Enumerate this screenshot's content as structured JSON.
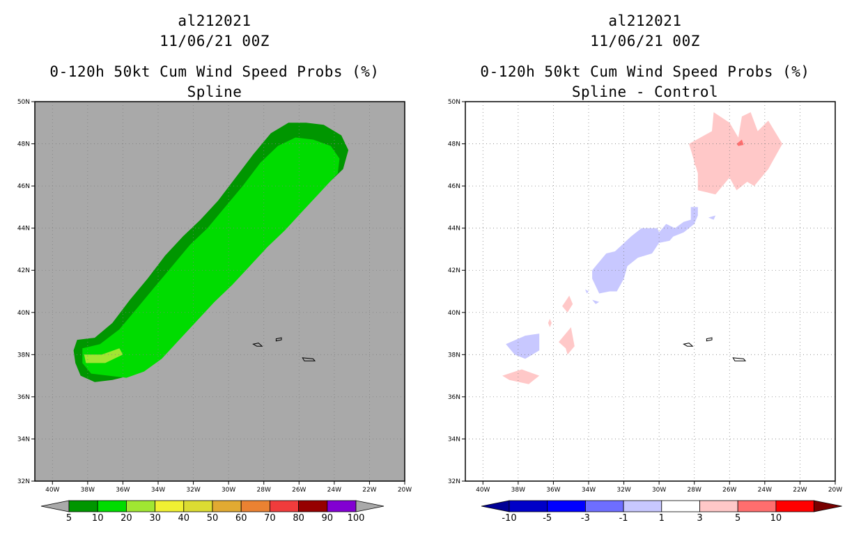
{
  "left_panel": {
    "storm_id": "al212021",
    "datetime": "11/06/21 00Z",
    "product": "0-120h 50kt Cum Wind Speed Probs (%)",
    "subtitle": "Spline",
    "background_color": "#a9a9a9",
    "colorbar": {
      "labels": [
        "5",
        "10",
        "20",
        "30",
        "40",
        "50",
        "60",
        "70",
        "80",
        "90",
        "100"
      ],
      "colors": [
        "#009600",
        "#00dc00",
        "#a0e632",
        "#f0f032",
        "#dcdc32",
        "#e1aa32",
        "#eb8232",
        "#f03c3c",
        "#960000",
        "#8200d2"
      ],
      "extend_color": "#a9a9a9"
    }
  },
  "right_panel": {
    "storm_id": "al212021",
    "datetime": "11/06/21 00Z",
    "product": "0-120h 50kt Cum Wind Speed Probs (%)",
    "subtitle": "Spline - Control",
    "background_color": "#ffffff",
    "colorbar": {
      "labels": [
        "-10",
        "-5",
        "-3",
        "-1",
        "1",
        "3",
        "5",
        "10"
      ],
      "colors": [
        "#0000c8",
        "#0000ff",
        "#6e6eff",
        "#c8c8ff",
        "#ffffff",
        "#ffc8c8",
        "#ff6e6e",
        "#ff0000"
      ],
      "low_extend_color": "#000096",
      "high_extend_color": "#780000"
    }
  },
  "axes": {
    "lat_labels": [
      "32N",
      "34N",
      "36N",
      "38N",
      "40N",
      "42N",
      "44N",
      "46N",
      "48N",
      "50N"
    ],
    "lon_labels": [
      "40W",
      "38W",
      "36W",
      "34W",
      "32W",
      "30W",
      "28W",
      "26W",
      "24W",
      "22W",
      "20W"
    ]
  },
  "chart_data": {
    "type": "map",
    "lat_range": [
      32,
      50
    ],
    "lon_range": [
      -41,
      -20
    ],
    "outer_band_5pct": [
      [
        -38.6,
        38.7
      ],
      [
        -37.6,
        38.8
      ],
      [
        -36.6,
        39.5
      ],
      [
        -35.6,
        40.6
      ],
      [
        -34.6,
        41.6
      ],
      [
        -33.6,
        42.7
      ],
      [
        -32.6,
        43.6
      ],
      [
        -31.6,
        44.4
      ],
      [
        -30.6,
        45.3
      ],
      [
        -29.6,
        46.4
      ],
      [
        -28.6,
        47.5
      ],
      [
        -27.6,
        48.5
      ],
      [
        -26.6,
        49.0
      ],
      [
        -25.6,
        49.0
      ],
      [
        -24.6,
        48.9
      ],
      [
        -23.6,
        48.4
      ],
      [
        -23.2,
        47.7
      ],
      [
        -23.5,
        46.8
      ],
      [
        -24.5,
        46.0
      ],
      [
        -25.6,
        45.1
      ],
      [
        -26.6,
        44.2
      ],
      [
        -27.6,
        43.4
      ],
      [
        -28.6,
        42.5
      ],
      [
        -29.6,
        41.7
      ],
      [
        -30.6,
        40.9
      ],
      [
        -31.6,
        40.0
      ],
      [
        -32.6,
        39.1
      ],
      [
        -33.6,
        38.2
      ],
      [
        -34.6,
        37.4
      ],
      [
        -35.6,
        37.0
      ],
      [
        -36.6,
        36.8
      ],
      [
        -37.6,
        36.7
      ],
      [
        -38.4,
        37.0
      ],
      [
        -38.7,
        37.6
      ],
      [
        -38.8,
        38.2
      ]
    ],
    "inner_band_10pct": [
      [
        -38.3,
        38.3
      ],
      [
        -37.3,
        38.5
      ],
      [
        -36.2,
        39.2
      ],
      [
        -35.2,
        40.2
      ],
      [
        -34.2,
        41.2
      ],
      [
        -33.2,
        42.2
      ],
      [
        -32.2,
        43.2
      ],
      [
        -31.2,
        44.0
      ],
      [
        -30.2,
        45.0
      ],
      [
        -29.2,
        46.0
      ],
      [
        -28.2,
        47.1
      ],
      [
        -27.2,
        47.9
      ],
      [
        -26.2,
        48.3
      ],
      [
        -25.2,
        48.2
      ],
      [
        -24.2,
        47.9
      ],
      [
        -23.7,
        47.3
      ],
      [
        -23.8,
        46.6
      ],
      [
        -24.8,
        45.7
      ],
      [
        -25.8,
        44.8
      ],
      [
        -26.8,
        43.9
      ],
      [
        -27.8,
        43.1
      ],
      [
        -28.8,
        42.2
      ],
      [
        -29.8,
        41.3
      ],
      [
        -30.8,
        40.5
      ],
      [
        -31.8,
        39.6
      ],
      [
        -32.8,
        38.7
      ],
      [
        -33.8,
        37.8
      ],
      [
        -34.8,
        37.2
      ],
      [
        -35.8,
        36.9
      ],
      [
        -36.8,
        37.0
      ],
      [
        -37.8,
        37.1
      ],
      [
        -38.3,
        37.6
      ]
    ],
    "core_20pct": [
      [
        -38.2,
        38.0
      ],
      [
        -37.2,
        38.0
      ],
      [
        -36.2,
        38.3
      ],
      [
        -36.0,
        38.0
      ],
      [
        -37.0,
        37.6
      ],
      [
        -38.1,
        37.6
      ]
    ],
    "islands": [
      [
        [
          -28.6,
          38.5
        ],
        [
          -28.3,
          38.55
        ],
        [
          -28.1,
          38.4
        ],
        [
          -28.4,
          38.4
        ]
      ],
      [
        [
          -27.3,
          38.75
        ],
        [
          -27.0,
          38.8
        ],
        [
          -27.0,
          38.7
        ],
        [
          -27.3,
          38.65
        ]
      ],
      [
        [
          -25.8,
          37.85
        ],
        [
          -25.2,
          37.8
        ],
        [
          -25.1,
          37.7
        ],
        [
          -25.7,
          37.7
        ]
      ]
    ],
    "diff_positive": [
      [
        [
          -28.3,
          48.0
        ],
        [
          -27.0,
          48.6
        ],
        [
          -26.9,
          49.5
        ],
        [
          -26.0,
          49.0
        ],
        [
          -25.5,
          48.3
        ],
        [
          -25.3,
          49.3
        ],
        [
          -24.8,
          49.5
        ],
        [
          -24.4,
          48.6
        ],
        [
          -23.8,
          49.1
        ],
        [
          -23.0,
          48.0
        ],
        [
          -23.8,
          46.8
        ],
        [
          -24.6,
          46.0
        ],
        [
          -25.0,
          46.2
        ],
        [
          -25.6,
          45.8
        ],
        [
          -26.0,
          46.4
        ],
        [
          -26.8,
          45.6
        ],
        [
          -27.8,
          45.8
        ],
        [
          -27.8,
          46.6
        ]
      ],
      [
        [
          -28.0,
          47.2
        ],
        [
          -27.8,
          47.1
        ],
        [
          -27.8,
          46.9
        ],
        [
          -28.0,
          47.0
        ]
      ],
      [
        [
          -38.9,
          37.0
        ],
        [
          -37.8,
          37.3
        ],
        [
          -36.8,
          37.0
        ],
        [
          -37.4,
          36.6
        ],
        [
          -38.5,
          36.8
        ]
      ],
      [
        [
          -35.7,
          38.6
        ],
        [
          -35.0,
          39.3
        ],
        [
          -34.8,
          38.4
        ],
        [
          -35.2,
          38.0
        ],
        [
          -35.3,
          38.3
        ]
      ],
      [
        [
          -35.5,
          40.3
        ],
        [
          -35.1,
          40.8
        ],
        [
          -34.9,
          40.4
        ],
        [
          -35.2,
          40.0
        ]
      ],
      [
        [
          -36.3,
          39.5
        ],
        [
          -36.2,
          39.7
        ],
        [
          -36.1,
          39.5
        ],
        [
          -36.2,
          39.3
        ]
      ]
    ],
    "diff_positive_high": [
      [
        [
          -25.6,
          48.0
        ],
        [
          -25.3,
          48.2
        ],
        [
          -25.2,
          47.95
        ],
        [
          -25.5,
          47.9
        ]
      ]
    ],
    "diff_negative": [
      [
        [
          -38.7,
          38.5
        ],
        [
          -37.6,
          38.9
        ],
        [
          -36.8,
          39.0
        ],
        [
          -36.8,
          38.2
        ],
        [
          -37.6,
          37.8
        ],
        [
          -38.2,
          38.0
        ]
      ],
      [
        [
          -33.8,
          42.0
        ],
        [
          -33.0,
          42.8
        ],
        [
          -32.5,
          42.9
        ],
        [
          -31.6,
          43.6
        ],
        [
          -31.0,
          44.0
        ],
        [
          -30.1,
          44.0
        ],
        [
          -30.0,
          43.8
        ],
        [
          -29.6,
          44.2
        ],
        [
          -29.1,
          44.0
        ],
        [
          -28.6,
          44.3
        ],
        [
          -28.2,
          44.4
        ],
        [
          -28.2,
          45.0
        ],
        [
          -27.8,
          45.0
        ],
        [
          -27.8,
          44.6
        ],
        [
          -28.0,
          44.2
        ],
        [
          -28.6,
          43.8
        ],
        [
          -29.2,
          43.6
        ],
        [
          -29.4,
          43.4
        ],
        [
          -30.0,
          43.3
        ],
        [
          -30.4,
          42.8
        ],
        [
          -31.2,
          42.6
        ],
        [
          -31.8,
          42.2
        ],
        [
          -32.0,
          41.6
        ],
        [
          -32.4,
          41.0
        ],
        [
          -32.8,
          41.0
        ],
        [
          -33.4,
          40.9
        ],
        [
          -33.8,
          41.6
        ]
      ],
      [
        [
          -33.8,
          40.6
        ],
        [
          -33.4,
          40.5
        ],
        [
          -33.6,
          40.4
        ]
      ],
      [
        [
          -34.2,
          41.1
        ],
        [
          -34.0,
          41.0
        ],
        [
          -34.1,
          40.9
        ]
      ],
      [
        [
          -27.2,
          44.5
        ],
        [
          -26.8,
          44.6
        ],
        [
          -26.9,
          44.4
        ]
      ]
    ]
  }
}
